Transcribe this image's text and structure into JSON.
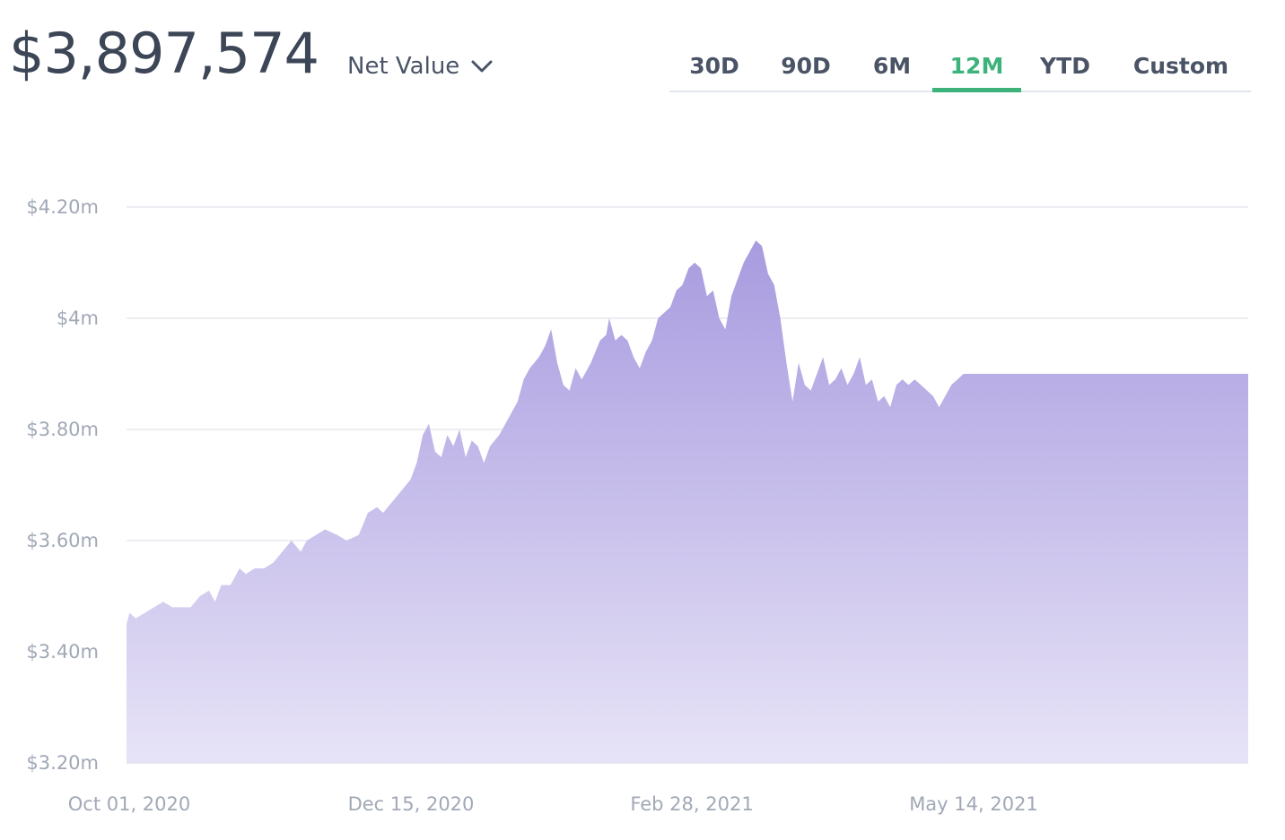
{
  "header": {
    "net_value": "$3,897,574",
    "metric": "Net Value",
    "metric_icon": "chevron-down-icon"
  },
  "tabs": [
    {
      "label": "30D",
      "active": false
    },
    {
      "label": "90D",
      "active": false
    },
    {
      "label": "6M",
      "active": false
    },
    {
      "label": "12M",
      "active": true
    },
    {
      "label": "YTD",
      "active": false
    },
    {
      "label": "Custom",
      "active": false
    }
  ],
  "colors": {
    "accent": "#3db37b",
    "area_top": "#a89bdf",
    "area_bottom": "#e7e3f7",
    "text_dark": "#3c4656",
    "tick": "#a1a8b6",
    "grid": "#e6e8ee"
  },
  "chart_data": {
    "type": "area",
    "ylim": [
      3.2,
      4.2
    ],
    "y_ticks": [
      3.2,
      3.4,
      3.6,
      3.8,
      4.0,
      4.2
    ],
    "y_tick_labels": [
      "$3.20m",
      "$3.40m",
      "$3.60m",
      "$3.80m",
      "$4m",
      "$4.20m"
    ],
    "x_ticks": [
      "2020-10-01",
      "2020-12-15",
      "2021-02-28",
      "2021-05-14"
    ],
    "x_tick_labels": [
      "Oct 01, 2020",
      "Dec 15, 2020",
      "Feb 28, 2021",
      "May 14, 2021"
    ],
    "grid": true,
    "series": [
      {
        "points": [
          [
            "2020-10-01",
            3.45
          ],
          [
            "2020-10-02",
            3.47
          ],
          [
            "2020-10-04",
            3.46
          ],
          [
            "2020-10-07",
            3.47
          ],
          [
            "2020-10-10",
            3.48
          ],
          [
            "2020-10-13",
            3.49
          ],
          [
            "2020-10-16",
            3.48
          ],
          [
            "2020-10-19",
            3.48
          ],
          [
            "2020-10-22",
            3.48
          ],
          [
            "2020-10-25",
            3.5
          ],
          [
            "2020-10-28",
            3.51
          ],
          [
            "2020-10-30",
            3.49
          ],
          [
            "2020-11-01",
            3.52
          ],
          [
            "2020-11-04",
            3.52
          ],
          [
            "2020-11-07",
            3.55
          ],
          [
            "2020-11-09",
            3.54
          ],
          [
            "2020-11-12",
            3.55
          ],
          [
            "2020-11-15",
            3.55
          ],
          [
            "2020-11-18",
            3.56
          ],
          [
            "2020-11-21",
            3.58
          ],
          [
            "2020-11-24",
            3.6
          ],
          [
            "2020-11-27",
            3.58
          ],
          [
            "2020-11-29",
            3.6
          ],
          [
            "2020-12-02",
            3.61
          ],
          [
            "2020-12-05",
            3.62
          ],
          [
            "2020-12-09",
            3.61
          ],
          [
            "2020-12-12",
            3.6
          ],
          [
            "2020-12-16",
            3.61
          ],
          [
            "2020-12-19",
            3.65
          ],
          [
            "2020-12-22",
            3.66
          ],
          [
            "2020-12-24",
            3.65
          ],
          [
            "2020-12-27",
            3.67
          ],
          [
            "2020-12-30",
            3.69
          ],
          [
            "2021-01-02",
            3.71
          ],
          [
            "2021-01-04",
            3.74
          ],
          [
            "2021-01-06",
            3.79
          ],
          [
            "2021-01-08",
            3.81
          ],
          [
            "2021-01-10",
            3.76
          ],
          [
            "2021-01-12",
            3.75
          ],
          [
            "2021-01-14",
            3.79
          ],
          [
            "2021-01-16",
            3.77
          ],
          [
            "2021-01-18",
            3.8
          ],
          [
            "2021-01-20",
            3.75
          ],
          [
            "2021-01-22",
            3.78
          ],
          [
            "2021-01-24",
            3.77
          ],
          [
            "2021-01-26",
            3.74
          ],
          [
            "2021-01-28",
            3.77
          ],
          [
            "2021-01-31",
            3.79
          ],
          [
            "2021-02-02",
            3.81
          ],
          [
            "2021-02-04",
            3.83
          ],
          [
            "2021-02-06",
            3.85
          ],
          [
            "2021-02-08",
            3.89
          ],
          [
            "2021-02-10",
            3.91
          ],
          [
            "2021-02-13",
            3.93
          ],
          [
            "2021-02-15",
            3.95
          ],
          [
            "2021-02-17",
            3.98
          ],
          [
            "2021-02-19",
            3.92
          ],
          [
            "2021-02-21",
            3.88
          ],
          [
            "2021-02-23",
            3.87
          ],
          [
            "2021-02-25",
            3.91
          ],
          [
            "2021-02-27",
            3.89
          ],
          [
            "2021-03-02",
            3.92
          ],
          [
            "2021-03-05",
            3.96
          ],
          [
            "2021-03-07",
            3.97
          ],
          [
            "2021-03-08",
            4.0
          ],
          [
            "2021-03-10",
            3.96
          ],
          [
            "2021-03-12",
            3.97
          ],
          [
            "2021-03-14",
            3.96
          ],
          [
            "2021-03-16",
            3.93
          ],
          [
            "2021-03-18",
            3.91
          ],
          [
            "2021-03-20",
            3.94
          ],
          [
            "2021-03-22",
            3.96
          ],
          [
            "2021-03-24",
            4.0
          ],
          [
            "2021-03-26",
            4.01
          ],
          [
            "2021-03-28",
            4.02
          ],
          [
            "2021-03-30",
            4.05
          ],
          [
            "2021-04-01",
            4.06
          ],
          [
            "2021-04-03",
            4.09
          ],
          [
            "2021-04-05",
            4.1
          ],
          [
            "2021-04-07",
            4.09
          ],
          [
            "2021-04-09",
            4.04
          ],
          [
            "2021-04-11",
            4.05
          ],
          [
            "2021-04-13",
            4.0
          ],
          [
            "2021-04-15",
            3.98
          ],
          [
            "2021-04-17",
            4.04
          ],
          [
            "2021-04-19",
            4.07
          ],
          [
            "2021-04-21",
            4.1
          ],
          [
            "2021-04-23",
            4.12
          ],
          [
            "2021-04-25",
            4.14
          ],
          [
            "2021-04-27",
            4.13
          ],
          [
            "2021-04-29",
            4.08
          ],
          [
            "2021-05-01",
            4.06
          ],
          [
            "2021-05-03",
            4.0
          ],
          [
            "2021-05-05",
            3.92
          ],
          [
            "2021-05-07",
            3.85
          ],
          [
            "2021-05-09",
            3.92
          ],
          [
            "2021-05-11",
            3.88
          ],
          [
            "2021-05-13",
            3.87
          ],
          [
            "2021-05-15",
            3.9
          ],
          [
            "2021-05-17",
            3.93
          ],
          [
            "2021-05-19",
            3.88
          ],
          [
            "2021-05-21",
            3.89
          ],
          [
            "2021-05-23",
            3.91
          ],
          [
            "2021-05-25",
            3.88
          ],
          [
            "2021-05-27",
            3.9
          ],
          [
            "2021-05-29",
            3.93
          ],
          [
            "2021-05-31",
            3.88
          ],
          [
            "2021-06-02",
            3.89
          ],
          [
            "2021-06-04",
            3.85
          ],
          [
            "2021-06-06",
            3.86
          ],
          [
            "2021-06-08",
            3.84
          ],
          [
            "2021-06-10",
            3.88
          ],
          [
            "2021-06-12",
            3.89
          ],
          [
            "2021-06-14",
            3.88
          ],
          [
            "2021-06-16",
            3.89
          ],
          [
            "2021-06-18",
            3.88
          ],
          [
            "2021-06-20",
            3.87
          ],
          [
            "2021-06-22",
            3.86
          ],
          [
            "2021-06-24",
            3.84
          ],
          [
            "2021-06-26",
            3.86
          ],
          [
            "2021-06-28",
            3.88
          ],
          [
            "2021-06-30",
            3.89
          ],
          [
            "2021-07-02",
            3.9
          ]
        ]
      }
    ]
  }
}
